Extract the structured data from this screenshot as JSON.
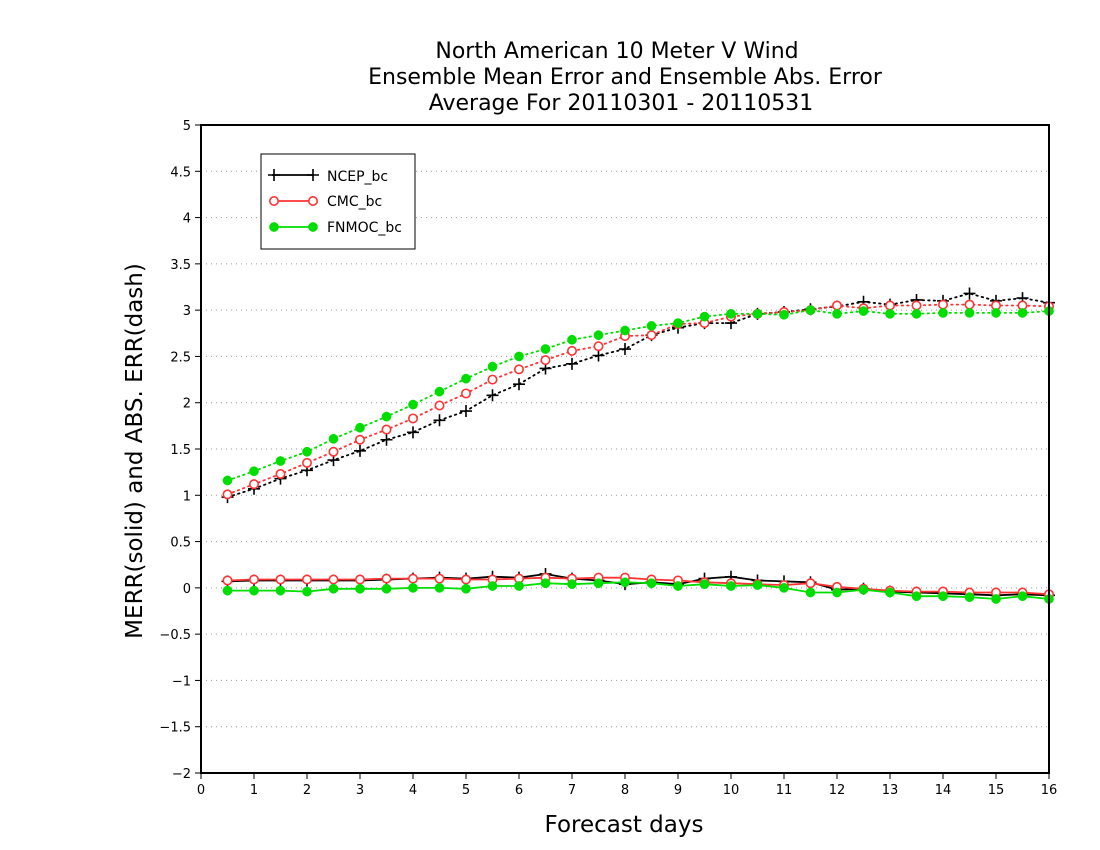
{
  "chart_data": {
    "type": "line",
    "title": [
      "North American 10 Meter V Wind",
      "Ensemble Mean Error and Ensemble Abs. Error",
      "Average For 20110301 - 20110531"
    ],
    "xlabel": "Forecast days",
    "ylabel": "MERR(solid) and ABS. ERR(dash)",
    "xlim": [
      0,
      16
    ],
    "ylim": [
      -2,
      5
    ],
    "xticks": [
      0,
      1,
      2,
      3,
      4,
      5,
      6,
      7,
      8,
      9,
      10,
      11,
      12,
      13,
      14,
      15,
      16
    ],
    "yticks": [
      -2,
      -1.5,
      -1,
      -0.5,
      0,
      0.5,
      1,
      1.5,
      2,
      2.5,
      3,
      3.5,
      4,
      4.5,
      5
    ],
    "ytick_labels": [
      "−2",
      "−1.5",
      "−1",
      "−0.5",
      "0",
      "0.5",
      "1",
      "1.5",
      "2",
      "2.5",
      "3",
      "3.5",
      "4",
      "4.5",
      "5"
    ],
    "grid": "horizontal dotted",
    "legend_position": "top-left",
    "x": [
      0.5,
      1,
      1.5,
      2,
      2.5,
      3,
      3.5,
      4,
      4.5,
      5,
      5.5,
      6,
      6.5,
      7,
      7.5,
      8,
      8.5,
      9,
      9.5,
      10,
      10.5,
      11,
      11.5,
      12,
      12.5,
      13,
      13.5,
      14,
      14.5,
      15,
      15.5,
      16
    ],
    "series": [
      {
        "name": "NCEP_bc",
        "color": "#000000",
        "marker": "plus",
        "merr": [
          0.07,
          0.08,
          0.08,
          0.08,
          0.08,
          0.08,
          0.09,
          0.1,
          0.11,
          0.1,
          0.12,
          0.11,
          0.15,
          0.1,
          0.08,
          0.04,
          0.06,
          0.04,
          0.1,
          0.12,
          0.08,
          0.07,
          0.06,
          -0.02,
          -0.01,
          -0.04,
          -0.05,
          -0.06,
          -0.07,
          -0.08,
          -0.07,
          -0.08
        ],
        "abs_err": [
          0.98,
          1.07,
          1.18,
          1.27,
          1.38,
          1.48,
          1.6,
          1.68,
          1.81,
          1.91,
          2.08,
          2.2,
          2.37,
          2.42,
          2.51,
          2.58,
          2.73,
          2.81,
          2.86,
          2.86,
          2.96,
          2.98,
          3.01,
          3.04,
          3.09,
          3.06,
          3.11,
          3.1,
          3.18,
          3.1,
          3.13,
          3.08
        ]
      },
      {
        "name": "CMC_bc",
        "color": "#ff3333",
        "marker": "open-circle",
        "merr": [
          0.08,
          0.09,
          0.09,
          0.09,
          0.09,
          0.09,
          0.1,
          0.1,
          0.1,
          0.09,
          0.09,
          0.1,
          0.11,
          0.1,
          0.11,
          0.11,
          0.09,
          0.08,
          0.06,
          0.05,
          0.04,
          0.03,
          0.05,
          0.01,
          -0.01,
          -0.03,
          -0.04,
          -0.04,
          -0.05,
          -0.05,
          -0.05,
          -0.07
        ],
        "abs_err": [
          1.01,
          1.12,
          1.23,
          1.35,
          1.47,
          1.6,
          1.71,
          1.83,
          1.97,
          2.1,
          2.25,
          2.36,
          2.46,
          2.56,
          2.61,
          2.72,
          2.73,
          2.85,
          2.86,
          2.93,
          2.96,
          2.98,
          3.0,
          3.05,
          3.02,
          3.05,
          3.05,
          3.06,
          3.06,
          3.05,
          3.05,
          3.04
        ]
      },
      {
        "name": "FNMOC_bc",
        "color": "#00dd00",
        "marker": "filled-circle",
        "merr": [
          -0.03,
          -0.03,
          -0.03,
          -0.04,
          -0.01,
          -0.01,
          -0.01,
          0.0,
          0.0,
          -0.01,
          0.02,
          0.02,
          0.05,
          0.04,
          0.05,
          0.06,
          0.05,
          0.02,
          0.04,
          0.02,
          0.03,
          0.0,
          -0.05,
          -0.05,
          -0.02,
          -0.05,
          -0.09,
          -0.09,
          -0.1,
          -0.12,
          -0.09,
          -0.12
        ],
        "abs_err": [
          1.16,
          1.26,
          1.37,
          1.47,
          1.61,
          1.73,
          1.85,
          1.98,
          2.12,
          2.26,
          2.39,
          2.5,
          2.58,
          2.68,
          2.73,
          2.78,
          2.83,
          2.86,
          2.93,
          2.96,
          2.96,
          2.95,
          3.0,
          2.96,
          2.99,
          2.96,
          2.96,
          2.97,
          2.97,
          2.97,
          2.97,
          2.99
        ]
      }
    ]
  }
}
